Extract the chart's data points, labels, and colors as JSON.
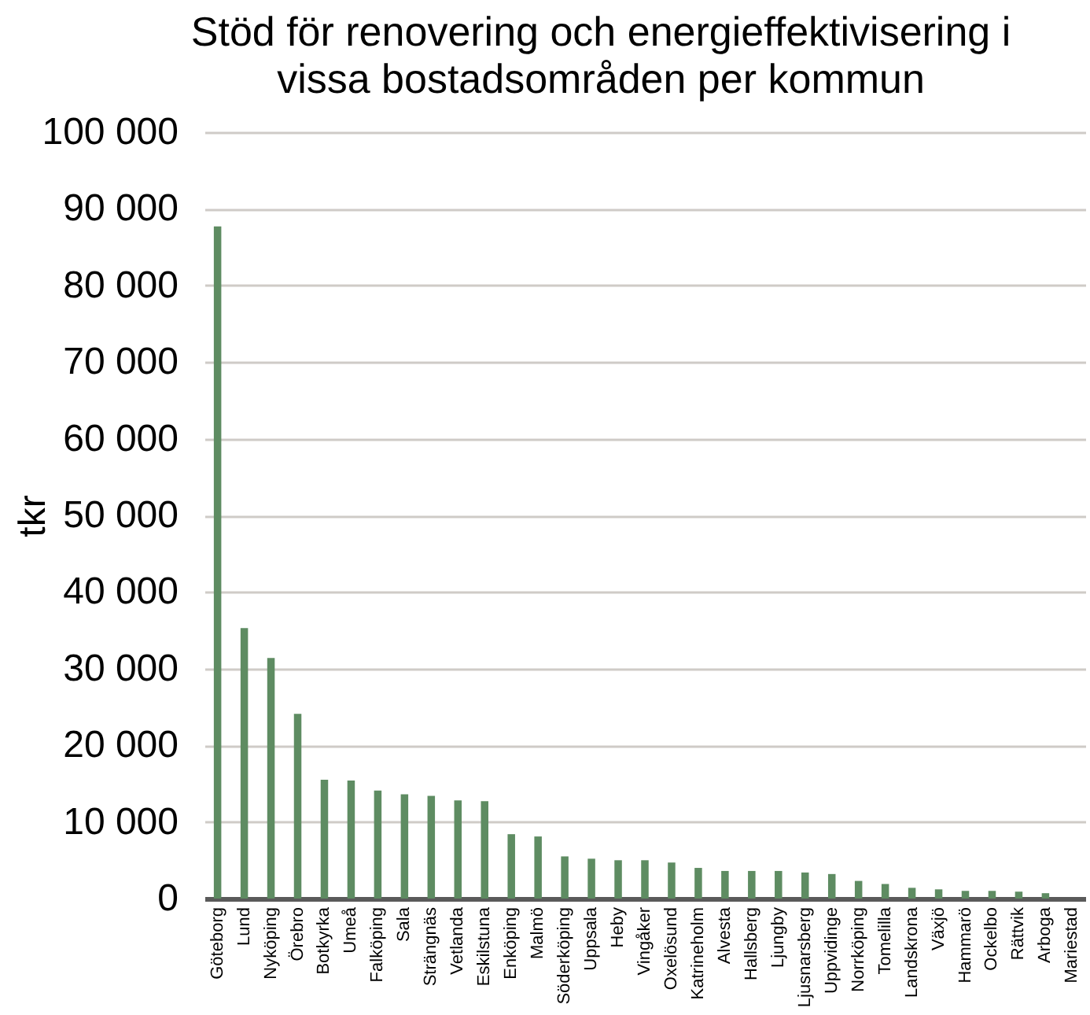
{
  "chart_data": {
    "type": "bar",
    "title": "Stöd för renovering och energieffektivisering i vissa bostadsområden per kommun",
    "ylabel": "tkr",
    "categories": [
      "Göteborg",
      "Lund",
      "Nyköping",
      "Örebro",
      "Botkyrka",
      "Umeå",
      "Falköping",
      "Sala",
      "Strängnäs",
      "Vetlanda",
      "Eskilstuna",
      "Enköping",
      "Malmö",
      "Söderköping",
      "Uppsala",
      "Heby",
      "Vingåker",
      "Oxelösund",
      "Katrineholm",
      "Alvesta",
      "Hallsberg",
      "Ljungby",
      "Ljusnarsberg",
      "Uppvidinge",
      "Norrköping",
      "Tomelilla",
      "Landskrona",
      "Växjö",
      "Hammarö",
      "Ockelbo",
      "Rättvik",
      "Arboga",
      "Mariestad"
    ],
    "values": [
      87700,
      35300,
      31400,
      24100,
      15500,
      15400,
      14100,
      13600,
      13400,
      12800,
      12700,
      8400,
      8100,
      5500,
      5200,
      5000,
      5000,
      4700,
      4000,
      3600,
      3600,
      3600,
      3400,
      3200,
      2300,
      1900,
      1400,
      1200,
      1000,
      1000,
      900,
      700,
      null
    ],
    "color": "#5e8c62",
    "ylim": [
      0,
      100000
    ],
    "yticks": [
      0,
      {
        "value": 10000,
        "label": "10 000"
      },
      {
        "value": 20000,
        "label": "20 000"
      },
      {
        "value": 30000,
        "label": "30 000"
      },
      {
        "value": 40000,
        "label": "40 000"
      },
      {
        "value": 50000,
        "label": "50 000"
      },
      {
        "value": 60000,
        "label": "60 000"
      },
      {
        "value": 70000,
        "label": "70 000"
      },
      {
        "value": 80000,
        "label": "80 000"
      },
      {
        "value": 90000,
        "label": "90 000"
      },
      {
        "value": 100000,
        "label": "100 000"
      }
    ],
    "grid": "y"
  }
}
